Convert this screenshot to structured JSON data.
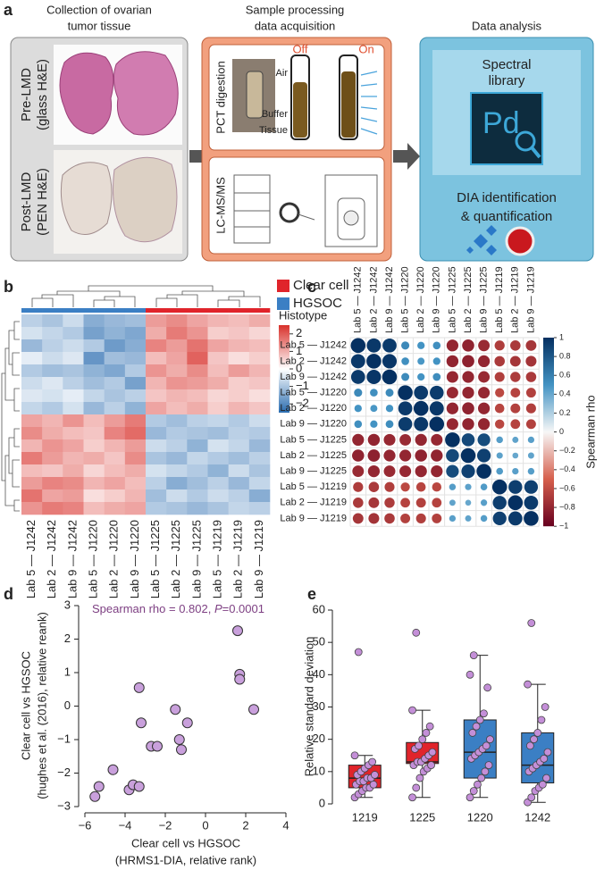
{
  "diagram": {
    "panel": "a",
    "col1": {
      "title": [
        "Collection of ovarian",
        "tumor tissue"
      ],
      "pre": [
        "Pre-LMD",
        "(glass H&E)"
      ],
      "post": [
        "Post-LMD",
        "(PEN H&E)"
      ]
    },
    "col2": {
      "title": [
        "Sample processing",
        "data acquisition"
      ],
      "pct": "PCT digestion",
      "off": "Off",
      "on": "On",
      "air": "Air",
      "buffer": "Buffer",
      "tissue": "Tissue",
      "lcms": "LC-MS/MS"
    },
    "col3": {
      "title": "Data analysis",
      "spectral": [
        "Spectral",
        "library"
      ],
      "pd": "Pd",
      "dia": [
        "DIA identification",
        "& quantification"
      ]
    }
  },
  "chart_data": [
    {
      "type": "heatmap",
      "panel": "b",
      "col_labels": [
        "Lab 5 — J1242",
        "Lab 2 — J1242",
        "Lab 9 — J1242",
        "Lab 5 — J1220",
        "Lab 2 — J1220",
        "Lab 9 — J1220",
        "Lab 5 — J1225",
        "Lab 2 — J1225",
        "Lab 9 — J1225",
        "Lab 5 — J1219",
        "Lab 2 — J1219",
        "Lab 9 — J1219"
      ],
      "values": [
        [
          -0.8,
          -1.0,
          -0.6,
          -1.4,
          -1.2,
          -1.1,
          1.2,
          1.4,
          1.1,
          0.9,
          0.8,
          1.0
        ],
        [
          -0.5,
          -0.7,
          -0.9,
          -1.6,
          -1.3,
          -1.5,
          1.0,
          1.6,
          1.3,
          0.6,
          0.7,
          0.5
        ],
        [
          -1.2,
          -0.8,
          -0.6,
          -0.9,
          -1.7,
          -1.4,
          1.5,
          1.2,
          1.7,
          1.1,
          0.9,
          0.8
        ],
        [
          -0.3,
          -0.6,
          -0.4,
          -1.8,
          -1.1,
          -1.2,
          0.8,
          1.1,
          1.9,
          0.7,
          0.4,
          0.6
        ],
        [
          -0.9,
          -1.1,
          -1.0,
          -1.3,
          -1.5,
          -0.9,
          1.3,
          1.0,
          1.4,
          0.8,
          1.2,
          0.9
        ],
        [
          -0.6,
          -0.4,
          -0.8,
          -1.1,
          -0.9,
          -1.6,
          0.9,
          1.3,
          1.2,
          1.0,
          0.6,
          0.7
        ],
        [
          -0.4,
          -0.5,
          -0.3,
          -0.7,
          -1.0,
          -0.8,
          0.7,
          0.9,
          0.8,
          0.5,
          0.6,
          0.4
        ],
        [
          -0.7,
          -0.9,
          -0.5,
          -1.2,
          -0.8,
          -1.3,
          1.1,
          0.8,
          1.0,
          0.6,
          0.9,
          0.7
        ],
        [
          1.1,
          0.9,
          1.3,
          0.8,
          1.2,
          1.6,
          -0.9,
          -1.1,
          -0.8,
          -0.7,
          -0.9,
          -0.6
        ],
        [
          1.4,
          1.0,
          0.8,
          0.7,
          1.5,
          1.8,
          -1.2,
          -0.9,
          -1.0,
          -1.1,
          -0.8,
          -0.9
        ],
        [
          0.9,
          1.3,
          1.1,
          0.6,
          0.9,
          1.2,
          -0.6,
          -0.8,
          -1.3,
          -0.5,
          -0.7,
          -1.2
        ],
        [
          1.6,
          1.2,
          0.9,
          1.0,
          0.7,
          1.4,
          -1.0,
          -1.2,
          -0.7,
          -0.9,
          -1.1,
          -0.8
        ],
        [
          0.8,
          0.7,
          1.0,
          0.5,
          0.8,
          1.0,
          -0.5,
          -0.7,
          -0.9,
          -1.3,
          -0.6,
          -1.0
        ],
        [
          1.2,
          1.5,
          1.4,
          0.9,
          1.1,
          0.8,
          -0.8,
          -1.4,
          -1.1,
          -0.8,
          -1.2,
          -0.7
        ],
        [
          1.7,
          1.1,
          1.2,
          0.4,
          0.6,
          0.9,
          -1.1,
          -0.6,
          -0.9,
          -0.6,
          -0.8,
          -1.4
        ],
        [
          1.3,
          1.6,
          1.5,
          0.8,
          1.0,
          1.1,
          -0.9,
          -1.0,
          -1.2,
          -1.0,
          -0.7,
          -0.8
        ]
      ],
      "column_group": [
        1,
        1,
        1,
        1,
        1,
        1,
        0,
        0,
        0,
        0,
        0,
        0
      ],
      "legend": [
        {
          "name": "Clear cell",
          "color": "#e0242b"
        },
        {
          "name": "HGSOC",
          "color": "#3b7fc4"
        }
      ],
      "legend_title": "Histotype",
      "colorscale": [
        "#2a6cb0",
        "#ffffff",
        "#d8312b"
      ],
      "clim": [
        -2.5,
        2.5
      ],
      "cticks": [
        2,
        1,
        0,
        {
          "value": -1,
          "label": "−1"
        },
        {
          "value": -2,
          "label": "−2"
        }
      ]
    },
    {
      "type": "correlation",
      "panel": "c",
      "row_labels": [
        "Lab 5 — J1242",
        "Lab 2 — J1242",
        "Lab 9 — J1242",
        "Lab 5 — J1220",
        "Lab 2 — J1220",
        "Lab 9 — J1220",
        "Lab 5 — J1225",
        "Lab 2 — J1225",
        "Lab 9 — J1225",
        "Lab 5 — J1219",
        "Lab 2 — J1219",
        "Lab 9 — J1219"
      ],
      "col_labels": [
        "Lab 5 — J1242",
        "Lab 2 — J1242",
        "Lab 9 — J1242",
        "Lab 5 — J1220",
        "Lab 2 — J1220",
        "Lab 9 — J1220",
        "Lab 5 — J1225",
        "Lab 2 — J1225",
        "Lab 9 — J1225",
        "Lab 5 — J1219",
        "Lab 2 — J1219",
        "Lab 9 — J1219"
      ],
      "values": [
        [
          1,
          0.96,
          0.95,
          0.55,
          0.5,
          0.52,
          -0.8,
          -0.82,
          -0.78,
          -0.68,
          -0.7,
          -0.72
        ],
        [
          0.96,
          1,
          0.97,
          0.52,
          0.48,
          0.5,
          -0.81,
          -0.83,
          -0.8,
          -0.7,
          -0.72,
          -0.73
        ],
        [
          0.95,
          0.97,
          1,
          0.54,
          0.5,
          0.53,
          -0.79,
          -0.8,
          -0.78,
          -0.67,
          -0.69,
          -0.7
        ],
        [
          0.55,
          0.52,
          0.54,
          1,
          0.95,
          0.94,
          -0.78,
          -0.8,
          -0.79,
          -0.62,
          -0.65,
          -0.66
        ],
        [
          0.5,
          0.48,
          0.5,
          0.95,
          1,
          0.96,
          -0.8,
          -0.82,
          -0.8,
          -0.64,
          -0.66,
          -0.67
        ],
        [
          0.52,
          0.5,
          0.53,
          0.94,
          0.96,
          1,
          -0.79,
          -0.81,
          -0.8,
          -0.63,
          -0.65,
          -0.66
        ],
        [
          -0.8,
          -0.81,
          -0.79,
          -0.78,
          -0.8,
          -0.79,
          1,
          0.88,
          0.86,
          0.45,
          0.42,
          0.44
        ],
        [
          -0.82,
          -0.83,
          -0.8,
          -0.8,
          -0.82,
          -0.81,
          0.88,
          1,
          0.92,
          0.43,
          0.4,
          0.42
        ],
        [
          -0.78,
          -0.8,
          -0.78,
          -0.79,
          -0.8,
          -0.8,
          0.86,
          0.92,
          1,
          0.46,
          0.44,
          0.45
        ],
        [
          -0.68,
          -0.7,
          -0.67,
          -0.62,
          -0.64,
          -0.63,
          0.45,
          0.43,
          0.46,
          1,
          0.93,
          0.92
        ],
        [
          -0.7,
          -0.72,
          -0.69,
          -0.65,
          -0.66,
          -0.65,
          0.42,
          0.4,
          0.44,
          0.93,
          1,
          0.95
        ],
        [
          -0.72,
          -0.73,
          -0.7,
          -0.66,
          -0.67,
          -0.66,
          0.44,
          0.42,
          0.45,
          0.92,
          0.95,
          1
        ]
      ],
      "colorscale": [
        "#67001f",
        "#d6604d",
        "#f7f7f7",
        "#4393c3",
        "#053061"
      ],
      "clim": [
        -1,
        1
      ],
      "cticks": [
        1,
        0.8,
        0.6,
        0.4,
        0.2,
        0,
        {
          "value": -0.2,
          "label": "−0.2"
        },
        {
          "value": -0.4,
          "label": "−0.4"
        },
        {
          "value": -0.6,
          "label": "−0.6"
        },
        {
          "value": -0.8,
          "label": "−0.8"
        },
        {
          "value": -1,
          "label": "−1"
        }
      ],
      "colorbar_label": "Spearman rho"
    },
    {
      "type": "scatter",
      "panel": "d",
      "x": [
        -5.5,
        -5.3,
        -4.6,
        -3.8,
        -3.6,
        -3.3,
        -3.3,
        -3.2,
        -2.7,
        -2.4,
        -1.5,
        -1.3,
        -1.2,
        -0.9,
        1.6,
        1.7,
        1.7,
        2.4
      ],
      "values": [
        -2.7,
        -2.4,
        -1.9,
        -2.5,
        -2.35,
        -2.4,
        0.55,
        -0.5,
        -1.2,
        -1.2,
        -0.1,
        -1.0,
        -1.3,
        -0.5,
        2.25,
        0.95,
        0.8,
        -0.1
      ],
      "xlim": [
        -6,
        4
      ],
      "ylim": [
        -3,
        3
      ],
      "xticks": [
        {
          "value": -6,
          "label": "−6"
        },
        {
          "value": -4,
          "label": "−4"
        },
        {
          "value": -2,
          "label": "−2"
        },
        0,
        2,
        4
      ],
      "yticks": [
        {
          "value": -3,
          "label": "−3"
        },
        {
          "value": -2,
          "label": "−2"
        },
        {
          "value": -1,
          "label": "−1"
        },
        0,
        1,
        2,
        3
      ],
      "x_label": [
        "Clear cell vs HGSOC",
        "(HRMS1-DIA, relative rank)"
      ],
      "y_label": [
        "Clear cell vs HGSOC",
        "(hughes et al. (2016), relative reank)"
      ],
      "annotation": [
        "Spearman rho = 0.802, ",
        "P",
        "=0.0001"
      ],
      "annotation_color": "#7d3f82",
      "color": "#c9a0dc"
    },
    {
      "type": "box",
      "panel": "e",
      "categories": [
        "1219",
        "1225",
        "1220",
        "1242"
      ],
      "boxes": [
        {
          "color": "#e0242b",
          "low": 2,
          "q1": 5,
          "median": 8,
          "q3": 12,
          "high": 15,
          "points": [
            2,
            3,
            4,
            5,
            5,
            6,
            6,
            7,
            7,
            8,
            8,
            9,
            9,
            10,
            11,
            12,
            13,
            15,
            47
          ]
        },
        {
          "color": "#e0242b",
          "low": 2,
          "q1": 12.5,
          "median": 13,
          "q3": 19,
          "high": 29,
          "points": [
            2,
            5,
            8,
            10,
            11,
            12,
            12,
            13,
            13,
            14,
            15,
            16,
            17,
            18,
            20,
            22,
            24,
            29,
            53
          ]
        },
        {
          "color": "#3b7fc4",
          "low": 2,
          "q1": 8,
          "median": 16,
          "q3": 26,
          "high": 46,
          "points": [
            2,
            4,
            6,
            8,
            10,
            12,
            14,
            15,
            16,
            17,
            18,
            20,
            22,
            24,
            26,
            28,
            36,
            40,
            46
          ]
        },
        {
          "color": "#3b7fc4",
          "low": 0.5,
          "q1": 6.5,
          "median": 12,
          "q3": 22,
          "high": 37,
          "points": [
            0.5,
            2,
            4,
            5,
            6,
            8,
            10,
            11,
            12,
            13,
            14,
            16,
            18,
            20,
            22,
            26,
            30,
            37,
            56
          ]
        }
      ],
      "ylim": [
        0,
        60
      ],
      "yticks": [
        0,
        10,
        20,
        30,
        40,
        50,
        60
      ],
      "y_label": "Relative standard deviation",
      "point_color": "#c48fd8"
    }
  ]
}
